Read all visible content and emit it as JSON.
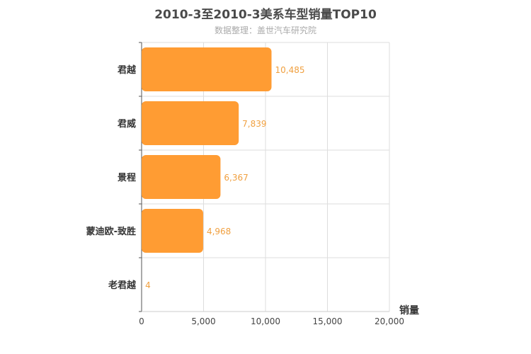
{
  "chart_data": {
    "type": "bar",
    "orientation": "horizontal",
    "title": "2010-3至2010-3美系车型销量TOP10",
    "subtitle": "数据整理：盖世汽车研究院",
    "xlabel": "销量",
    "ylabel": "",
    "categories": [
      "君越",
      "君威",
      "景程",
      "蒙迪欧-致胜",
      "老君越"
    ],
    "values": [
      10485,
      7839,
      6367,
      4968,
      4
    ],
    "value_labels": [
      "10,485",
      "7,839",
      "6,367",
      "4,968",
      "4"
    ],
    "xlim": [
      0,
      20000
    ],
    "xticks": [
      0,
      5000,
      10000,
      15000,
      20000
    ],
    "xtick_labels": [
      "0",
      "5,000",
      "10,000",
      "15,000",
      "20,000"
    ],
    "grid": true,
    "bar_color": "#ff9c33",
    "label_color": "#f0a040"
  }
}
